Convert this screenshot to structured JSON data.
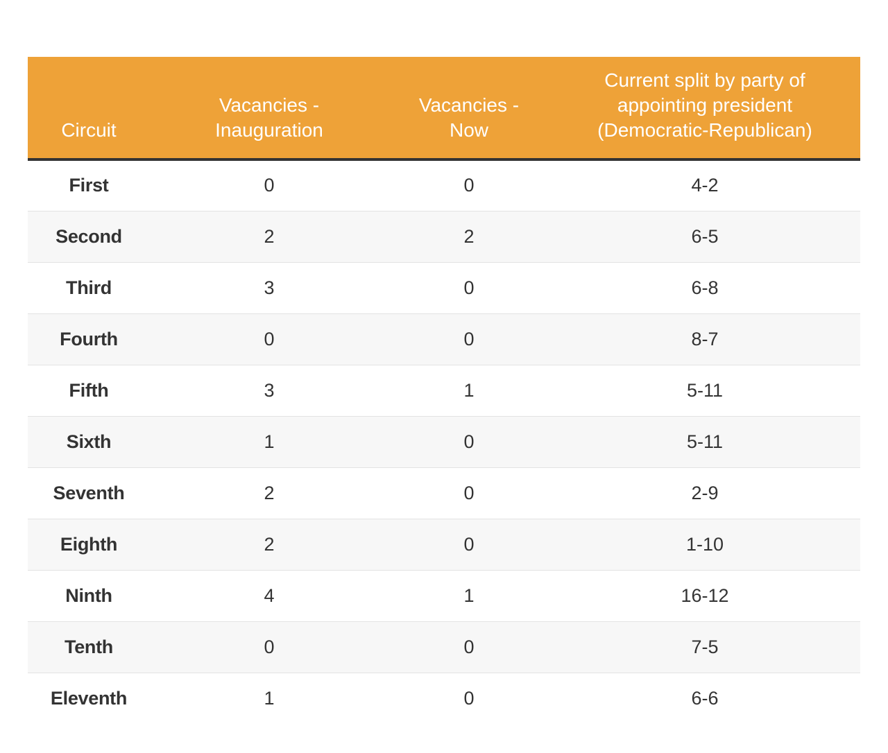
{
  "chart_data": {
    "type": "table",
    "columns": [
      [
        "Circuit"
      ],
      [
        "Vacancies -",
        "Inauguration"
      ],
      [
        "Vacancies -",
        "Now"
      ],
      [
        "Current split by party of",
        "appointing president",
        "(Democratic-Republican)"
      ]
    ],
    "rows": [
      [
        "First",
        "0",
        "0",
        "4-2"
      ],
      [
        "Second",
        "2",
        "2",
        "6-5"
      ],
      [
        "Third",
        "3",
        "0",
        "6-8"
      ],
      [
        "Fourth",
        "0",
        "0",
        "8-7"
      ],
      [
        "Fifth",
        "3",
        "1",
        "5-11"
      ],
      [
        "Sixth",
        "1",
        "0",
        "5-11"
      ],
      [
        "Seventh",
        "2",
        "0",
        "2-9"
      ],
      [
        "Eighth",
        "2",
        "0",
        "1-10"
      ],
      [
        "Ninth",
        "4",
        "1",
        "16-12"
      ],
      [
        "Tenth",
        "0",
        "0",
        "7-5"
      ],
      [
        "Eleventh",
        "1",
        "0",
        "6-6"
      ]
    ],
    "header_color": "#eea238"
  }
}
